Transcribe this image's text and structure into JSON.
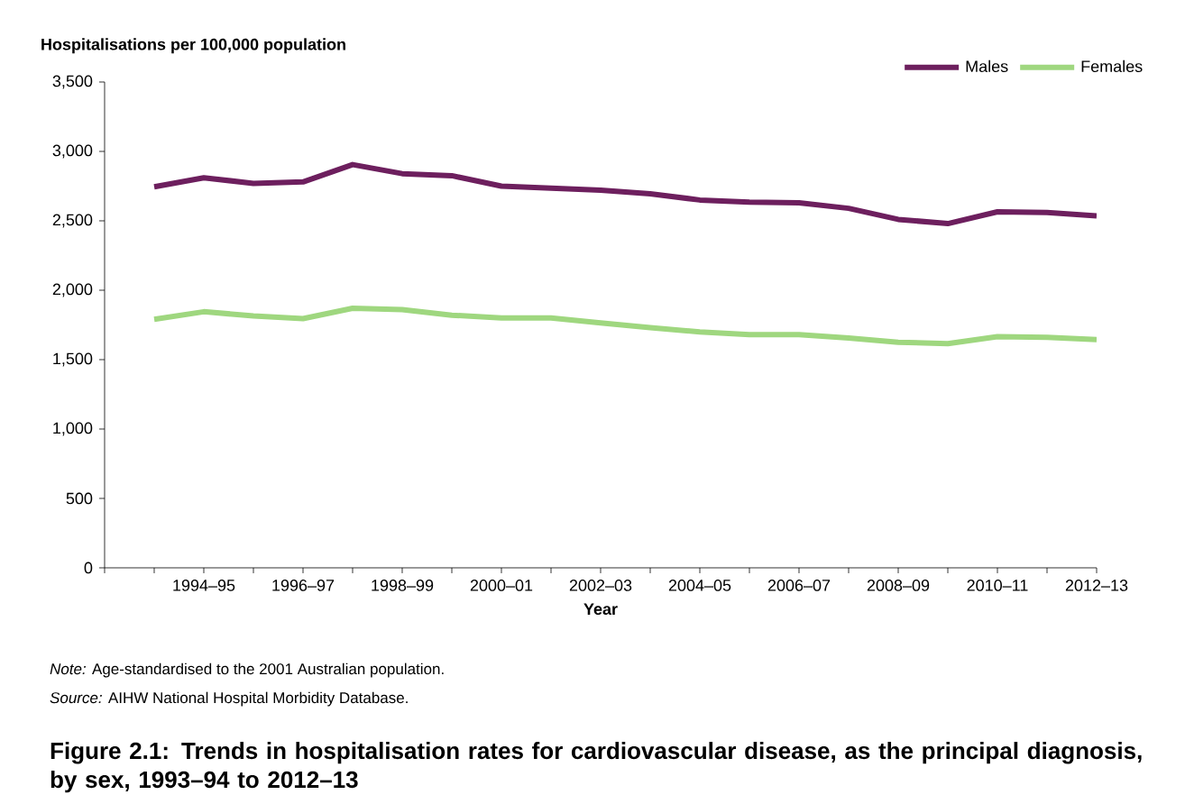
{
  "chart_data": {
    "type": "line",
    "title": "Figure 2.1: Trends in hospitalisation rates for cardiovascular disease, as the principal diagnosis, by sex, 1993–94 to 2012–13",
    "xlabel": "Year",
    "ylabel": "Hospitalisations per 100,000 population",
    "categories": [
      null,
      "1994–95",
      null,
      "1996–97",
      null,
      "1998–99",
      null,
      "2000–01",
      null,
      "2002–03",
      null,
      "2004–05",
      null,
      "2006–07",
      null,
      "2008–09",
      null,
      "2010–11",
      null,
      "2012–13"
    ],
    "series": [
      {
        "name": "Males",
        "color": "#6d1f5e",
        "values": [
          2745,
          2810,
          2770,
          2780,
          2905,
          2840,
          2825,
          2750,
          2735,
          2720,
          2695,
          2650,
          2635,
          2630,
          2590,
          2510,
          2480,
          2565,
          2560,
          2535
        ]
      },
      {
        "name": "Females",
        "color": "#9fd77f",
        "values": [
          1790,
          1845,
          1815,
          1795,
          1870,
          1860,
          1820,
          1800,
          1800,
          1765,
          1730,
          1700,
          1680,
          1680,
          1655,
          1625,
          1615,
          1665,
          1660,
          1645
        ]
      }
    ],
    "ylim": [
      0,
      3500
    ],
    "yticks": [
      {
        "value": 0,
        "label": "0"
      },
      {
        "value": 500,
        "label": "500"
      },
      {
        "value": 1000,
        "label": "1,000"
      },
      {
        "value": 1500,
        "label": "1,500"
      },
      {
        "value": 2000,
        "label": "2,000"
      },
      {
        "value": 2500,
        "label": "2,500"
      },
      {
        "value": 3000,
        "label": "3,000"
      },
      {
        "value": 3500,
        "label": "3,500"
      }
    ],
    "grid": false,
    "legend": "top right",
    "marker": "none",
    "line_style": "solid",
    "annotations": [
      "*Note:* Age-standardised to the 2001 Australian population.",
      "*Source:* AIHW National Hospital Morbidity Database."
    ]
  }
}
